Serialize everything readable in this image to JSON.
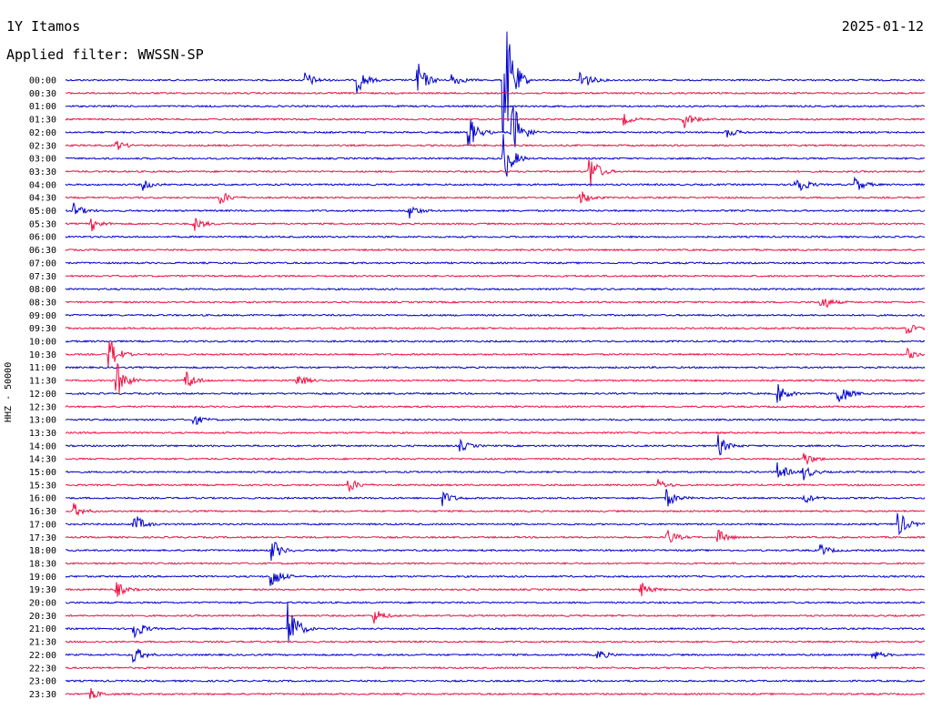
{
  "header": {
    "station": "1Y Itamos",
    "date": "2025-01-12",
    "filter": "Applied filter: WWSSN-SP"
  },
  "axis": {
    "ylabel": "HHZ - 50000"
  },
  "colors": {
    "trace_a": "#0000cc",
    "trace_b": "#ee1144"
  },
  "chart_data": {
    "type": "line",
    "title": "1Y Itamos",
    "subtitle": "Applied filter: WWSSN-SP",
    "ylabel": "HHZ - 50000",
    "row_interval_minutes": 30,
    "rows": [
      "00:00",
      "00:30",
      "01:00",
      "01:30",
      "02:00",
      "02:30",
      "03:00",
      "03:30",
      "04:00",
      "04:30",
      "05:00",
      "05:30",
      "06:00",
      "06:30",
      "07:00",
      "07:30",
      "08:00",
      "08:30",
      "09:00",
      "09:30",
      "10:00",
      "10:30",
      "11:00",
      "11:30",
      "12:00",
      "12:30",
      "13:00",
      "13:30",
      "14:00",
      "14:30",
      "15:00",
      "15:30",
      "16:00",
      "16:30",
      "17:00",
      "17:30",
      "18:00",
      "18:30",
      "19:00",
      "19:30",
      "20:00",
      "20:30",
      "21:00",
      "21:30",
      "22:00",
      "22:30",
      "23:00",
      "23:30"
    ],
    "row_colors": [
      "#0000cc",
      "#ee1144"
    ],
    "events": [
      {
        "row": 0,
        "t": 0.28,
        "amp": 9
      },
      {
        "row": 0,
        "t": 0.34,
        "amp": 14
      },
      {
        "row": 0,
        "t": 0.41,
        "amp": 20
      },
      {
        "row": 0,
        "t": 0.45,
        "amp": 8
      },
      {
        "row": 0,
        "t": 0.51,
        "amp": 90
      },
      {
        "row": 0,
        "t": 0.6,
        "amp": 14
      },
      {
        "row": 3,
        "t": 0.65,
        "amp": 6
      },
      {
        "row": 3,
        "t": 0.72,
        "amp": 10
      },
      {
        "row": 4,
        "t": 0.47,
        "amp": 18
      },
      {
        "row": 4,
        "t": 0.52,
        "amp": 40
      },
      {
        "row": 4,
        "t": 0.77,
        "amp": 6
      },
      {
        "row": 5,
        "t": 0.06,
        "amp": 5
      },
      {
        "row": 6,
        "t": 0.51,
        "amp": 30
      },
      {
        "row": 7,
        "t": 0.61,
        "amp": 22
      },
      {
        "row": 8,
        "t": 0.09,
        "amp": 6
      },
      {
        "row": 8,
        "t": 0.85,
        "amp": 15
      },
      {
        "row": 8,
        "t": 0.92,
        "amp": 8
      },
      {
        "row": 9,
        "t": 0.18,
        "amp": 8
      },
      {
        "row": 9,
        "t": 0.6,
        "amp": 8
      },
      {
        "row": 10,
        "t": 0.01,
        "amp": 8
      },
      {
        "row": 10,
        "t": 0.4,
        "amp": 8
      },
      {
        "row": 11,
        "t": 0.03,
        "amp": 8
      },
      {
        "row": 11,
        "t": 0.15,
        "amp": 8
      },
      {
        "row": 17,
        "t": 0.88,
        "amp": 10
      },
      {
        "row": 19,
        "t": 0.98,
        "amp": 6
      },
      {
        "row": 21,
        "t": 0.05,
        "amp": 22
      },
      {
        "row": 21,
        "t": 0.98,
        "amp": 6
      },
      {
        "row": 23,
        "t": 0.06,
        "amp": 20
      },
      {
        "row": 23,
        "t": 0.14,
        "amp": 12
      },
      {
        "row": 23,
        "t": 0.27,
        "amp": 8
      },
      {
        "row": 24,
        "t": 0.83,
        "amp": 10
      },
      {
        "row": 24,
        "t": 0.9,
        "amp": 14
      },
      {
        "row": 26,
        "t": 0.15,
        "amp": 6
      },
      {
        "row": 28,
        "t": 0.46,
        "amp": 6
      },
      {
        "row": 28,
        "t": 0.76,
        "amp": 12
      },
      {
        "row": 29,
        "t": 0.86,
        "amp": 8
      },
      {
        "row": 30,
        "t": 0.83,
        "amp": 10
      },
      {
        "row": 30,
        "t": 0.86,
        "amp": 8
      },
      {
        "row": 31,
        "t": 0.33,
        "amp": 8
      },
      {
        "row": 31,
        "t": 0.69,
        "amp": 6
      },
      {
        "row": 32,
        "t": 0.44,
        "amp": 8
      },
      {
        "row": 32,
        "t": 0.7,
        "amp": 10
      },
      {
        "row": 32,
        "t": 0.86,
        "amp": 6
      },
      {
        "row": 33,
        "t": 0.01,
        "amp": 8
      },
      {
        "row": 34,
        "t": 0.08,
        "amp": 12
      },
      {
        "row": 34,
        "t": 0.97,
        "amp": 14
      },
      {
        "row": 35,
        "t": 0.7,
        "amp": 10
      },
      {
        "row": 35,
        "t": 0.76,
        "amp": 8
      },
      {
        "row": 36,
        "t": 0.24,
        "amp": 14
      },
      {
        "row": 36,
        "t": 0.88,
        "amp": 6
      },
      {
        "row": 38,
        "t": 0.24,
        "amp": 14
      },
      {
        "row": 39,
        "t": 0.06,
        "amp": 8
      },
      {
        "row": 39,
        "t": 0.67,
        "amp": 8
      },
      {
        "row": 41,
        "t": 0.36,
        "amp": 8
      },
      {
        "row": 42,
        "t": 0.08,
        "amp": 12
      },
      {
        "row": 42,
        "t": 0.26,
        "amp": 30
      },
      {
        "row": 44,
        "t": 0.08,
        "amp": 10
      },
      {
        "row": 44,
        "t": 0.62,
        "amp": 6
      },
      {
        "row": 44,
        "t": 0.94,
        "amp": 6
      },
      {
        "row": 47,
        "t": 0.03,
        "amp": 6
      }
    ]
  }
}
